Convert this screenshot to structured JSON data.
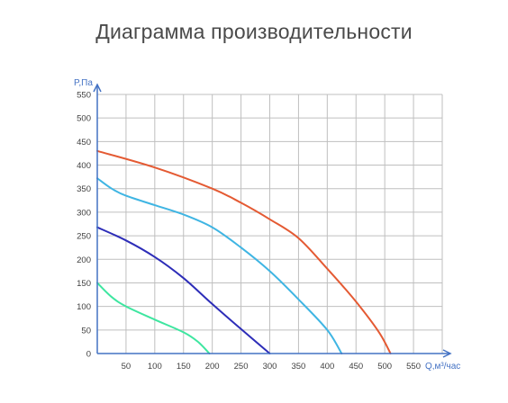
{
  "page": {
    "title": "Диаграмма производительности"
  },
  "chart_data": {
    "type": "line",
    "title": "Диаграмма производительности",
    "xlabel": "Q,м³/час",
    "ylabel": "P,Па",
    "xlim": [
      0,
      600
    ],
    "ylim": [
      0,
      550
    ],
    "x_ticks": [
      50,
      100,
      150,
      200,
      250,
      300,
      350,
      400,
      450,
      500,
      550
    ],
    "y_ticks": [
      0,
      50,
      100,
      150,
      200,
      250,
      300,
      350,
      400,
      450,
      500,
      550
    ],
    "grid": true,
    "colors": {
      "axis": "#4472c4",
      "grid": "#bfbfbf",
      "tick_label": "#404040",
      "axis_label": "#4472c4"
    },
    "series": [
      {
        "color": "#e45a33",
        "x": [
          0,
          100,
          200,
          250,
          300,
          350,
          400,
          450,
          490,
          510
        ],
        "y": [
          430,
          395,
          350,
          320,
          285,
          245,
          180,
          110,
          45,
          0
        ]
      },
      {
        "color": "#3fb5e3",
        "x": [
          0,
          25,
          50,
          100,
          150,
          200,
          250,
          300,
          350,
          400,
          425
        ],
        "y": [
          372,
          350,
          335,
          315,
          295,
          268,
          225,
          175,
          115,
          50,
          0
        ]
      },
      {
        "color": "#2d2db8",
        "x": [
          0,
          50,
          100,
          150,
          200,
          250,
          300
        ],
        "y": [
          268,
          240,
          205,
          160,
          105,
          52,
          0
        ]
      },
      {
        "color": "#3ee6a0",
        "x": [
          0,
          25,
          50,
          100,
          150,
          175,
          195
        ],
        "y": [
          150,
          120,
          100,
          72,
          45,
          25,
          0
        ]
      }
    ]
  }
}
